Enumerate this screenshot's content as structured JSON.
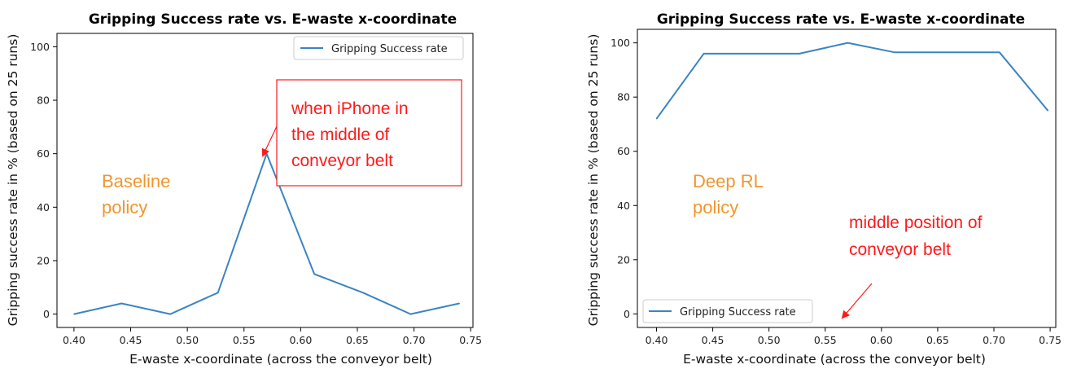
{
  "chart_data": [
    {
      "type": "line",
      "title": "Gripping Success rate vs. E-waste x-coordinate",
      "xlabel": "E-waste x-coordinate (across the conveyor belt)",
      "ylabel": "Gripping success rate in % (based on 25 runs)",
      "xlim": [
        0.385,
        0.752
      ],
      "ylim": [
        -5,
        105
      ],
      "xticks": [
        "0.40",
        "0.45",
        "0.50",
        "0.55",
        "0.60",
        "0.65",
        "0.70",
        "0.75"
      ],
      "yticks": [
        "0",
        "20",
        "40",
        "60",
        "80",
        "100"
      ],
      "grid": false,
      "legend_position": "upper right",
      "series": [
        {
          "name": "Gripping Success rate",
          "color": "#3a84c3",
          "x": [
            0.4,
            0.442,
            0.485,
            0.527,
            0.57,
            0.612,
            0.655,
            0.697,
            0.74
          ],
          "y": [
            0,
            4,
            0,
            8,
            60,
            15,
            8,
            0,
            4
          ]
        }
      ],
      "annotations": {
        "policy_label": [
          "Baseline",
          "policy"
        ],
        "callout_text": [
          "when iPhone in",
          "the middle of",
          "conveyor belt"
        ]
      }
    },
    {
      "type": "line",
      "title": "Gripping Success rate vs. E-waste x-coordinate",
      "xlabel": "E-waste x-coordinate (across the conveyor belt)",
      "ylabel": "Gripping success rate in % (based on 25 runs)",
      "xlim": [
        0.383,
        0.755
      ],
      "ylim": [
        -5,
        105
      ],
      "xticks": [
        "0.40",
        "0.45",
        "0.50",
        "0.55",
        "0.60",
        "0.65",
        "0.70",
        "0.75"
      ],
      "yticks": [
        "0",
        "20",
        "40",
        "60",
        "80",
        "100"
      ],
      "grid": false,
      "legend_position": "lower left",
      "series": [
        {
          "name": "Gripping Success rate",
          "color": "#3a84c3",
          "x": [
            0.4,
            0.442,
            0.485,
            0.527,
            0.57,
            0.612,
            0.655,
            0.705,
            0.748
          ],
          "y": [
            72,
            96,
            96,
            96,
            100,
            96.5,
            96.5,
            96.5,
            75
          ]
        }
      ],
      "annotations": {
        "policy_label": [
          "Deep RL",
          "policy"
        ],
        "callout_text": [
          "middle position of",
          "conveyor belt"
        ]
      }
    }
  ],
  "colors": {
    "line": "#3a84c3",
    "annotation_orange": "#f0962e",
    "annotation_red": "#ff1a1a"
  }
}
